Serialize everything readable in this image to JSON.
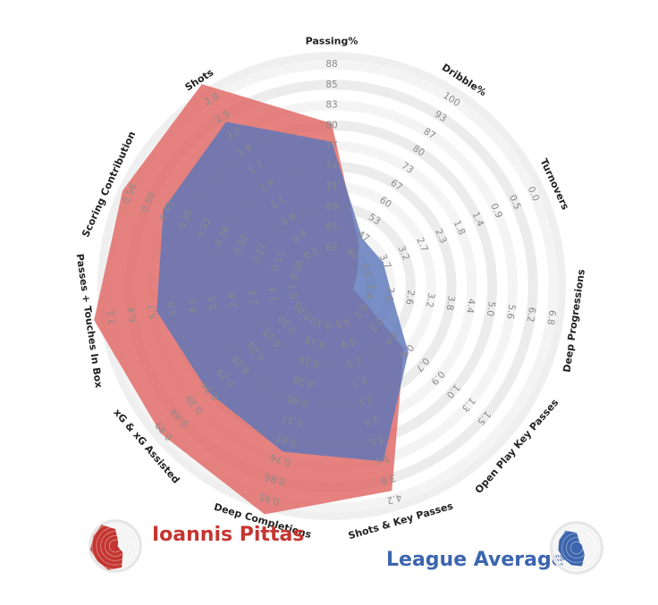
{
  "chart_data": {
    "type": "radar",
    "title": "",
    "axes": [
      {
        "label": "Passing%",
        "ticks": [
          "62",
          "65",
          "68",
          "71",
          "74",
          "77",
          "80",
          "83",
          "85",
          "88"
        ]
      },
      {
        "label": "Dribble%",
        "ticks": [
          "40",
          "47",
          "53",
          "60",
          "67",
          "73",
          "80",
          "87",
          "93",
          "100"
        ]
      },
      {
        "label": "Turnovers",
        "ticks": [
          "4.1",
          "3.7",
          "3.2",
          "2.7",
          "2.3",
          "1.8",
          "1.4",
          "0.9",
          "0.5",
          "0.0"
        ]
      },
      {
        "label": "Deep Progressions",
        "ticks": [
          "1.4",
          "2.0",
          "2.6",
          "3.2",
          "3.8",
          "4.4",
          "5.0",
          "5.6",
          "6.2",
          "6.8"
        ]
      },
      {
        "label": "Open Play Key Passes",
        "ticks": [
          "0.1",
          "0.3",
          "0.4",
          "0.6",
          "0.7",
          "0.9",
          "1.0",
          "1.3",
          "1.5",
          ""
        ]
      },
      {
        "label": "Shots & Key Passes",
        "ticks": [
          "0.5",
          "0.9",
          "1.3",
          "1.7",
          "2.1",
          "2.5",
          "3.0",
          "3.4",
          "3.8",
          "4.2"
        ]
      },
      {
        "label": "Deep Completions",
        "ticks": [
          "0.10",
          "0.19",
          "0.29",
          "0.38",
          "0.48",
          "0.57",
          "0.67",
          "0.76",
          "0.86",
          "0.95"
        ]
      },
      {
        "label": "xG & xG Assisted",
        "ticks": [
          "0.05",
          "0.10",
          "0.15",
          "0.20",
          "0.24",
          "0.29",
          "0.34",
          "0.39",
          "0.44",
          "0.49"
        ]
      },
      {
        "label": "Passes + Touches In Box",
        "ticks": [
          "0.7",
          "1.4",
          "2.1",
          "2.8",
          "3.5",
          "4.2",
          "5.0",
          "5.7",
          "6.4",
          "7.1"
        ]
      },
      {
        "label": "Scoring Contribution",
        "ticks": [
          "0.06",
          "0.11",
          "0.17",
          "0.22",
          "0.28",
          "0.33",
          "0.39",
          "0.45",
          "0.50",
          "0.56"
        ]
      },
      {
        "label": "Shots",
        "ticks": [
          "0.3",
          "0.6",
          "0.8",
          "1.1",
          "1.4",
          "1.7",
          "1.9",
          "2.2",
          "2.5",
          "2.8"
        ]
      }
    ],
    "series": [
      {
        "name": "Ioannis Pittas",
        "color": "#e06c68",
        "values": [
          7.1,
          1.6,
          0.5,
          0.2,
          3.8,
          9.6,
          10.8,
          10.2,
          10.9,
          10.4,
          10.9
        ]
      },
      {
        "name": "League Average",
        "color": "#5b76b8",
        "values": [
          6.2,
          1.9,
          1.9,
          2.1,
          4.1,
          8.1,
          7.6,
          7.1,
          7.8,
          8.2,
          8.7
        ]
      }
    ],
    "rings": 10,
    "legend_position": "bottom"
  },
  "legend": {
    "player_name": "Ioannis Pittas",
    "player_color": "#c43631",
    "average_name": "League Average",
    "average_color": "#3c65ad"
  }
}
